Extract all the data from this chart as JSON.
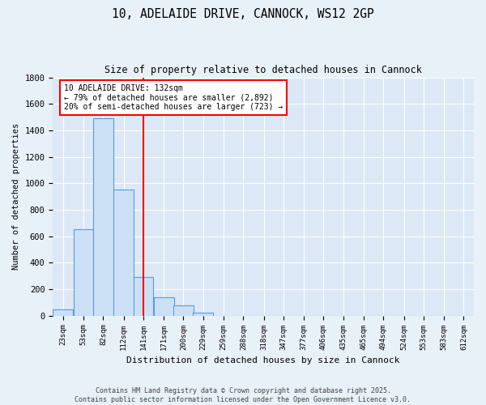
{
  "title1": "10, ADELAIDE DRIVE, CANNOCK, WS12 2GP",
  "title2": "Size of property relative to detached houses in Cannock",
  "xlabel": "Distribution of detached houses by size in Cannock",
  "ylabel": "Number of detached properties",
  "bin_labels": [
    "23sqm",
    "53sqm",
    "82sqm",
    "112sqm",
    "141sqm",
    "171sqm",
    "200sqm",
    "229sqm",
    "259sqm",
    "288sqm",
    "318sqm",
    "347sqm",
    "377sqm",
    "406sqm",
    "435sqm",
    "465sqm",
    "494sqm",
    "524sqm",
    "553sqm",
    "583sqm",
    "612sqm"
  ],
  "bin_centers": [
    23,
    53,
    82,
    112,
    141,
    171,
    200,
    229,
    259,
    288,
    318,
    347,
    377,
    406,
    435,
    465,
    494,
    524,
    553,
    583,
    612
  ],
  "counts": [
    50,
    650,
    1490,
    950,
    290,
    140,
    75,
    20,
    0,
    0,
    0,
    0,
    0,
    0,
    0,
    0,
    0,
    0,
    0,
    0,
    0
  ],
  "bar_color": "#cce0f5",
  "bar_edge_color": "#5b9bd5",
  "bar_linewidth": 0.8,
  "red_line_bin_index": 4,
  "red_line_x": 141,
  "annotation_title": "10 ADELAIDE DRIVE: 132sqm",
  "annotation_line1": "← 79% of detached houses are smaller (2,892)",
  "annotation_line2": "20% of semi-detached houses are larger (723) →",
  "ylim": [
    0,
    1800
  ],
  "yticks": [
    0,
    200,
    400,
    600,
    800,
    1000,
    1200,
    1400,
    1600,
    1800
  ],
  "bg_color": "#dce8f5",
  "fig_bg_color": "#e8f0f8",
  "grid_color": "#ffffff",
  "footer1": "Contains HM Land Registry data © Crown copyright and database right 2025.",
  "footer2": "Contains public sector information licensed under the Open Government Licence v3.0."
}
